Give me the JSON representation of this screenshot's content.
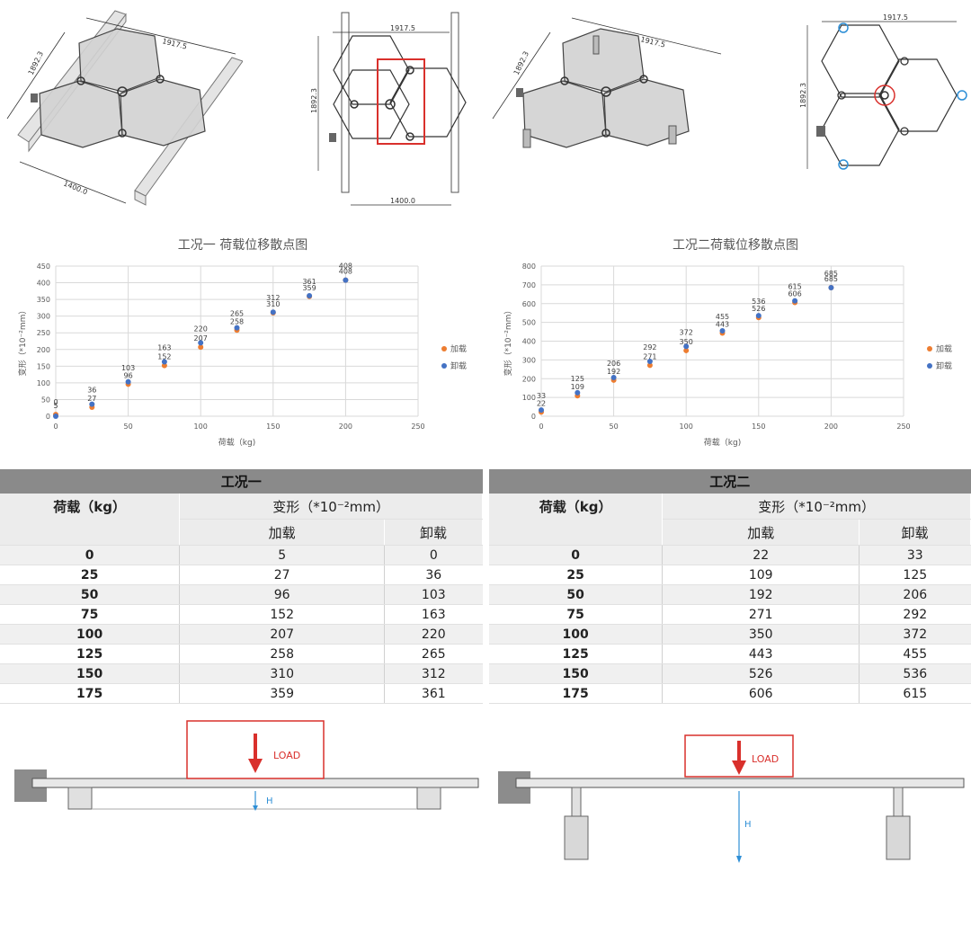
{
  "drawings": {
    "dim_width": "1917.5",
    "dim_height": "1892.3",
    "dim_span": "1400.0"
  },
  "colors": {
    "loading": "#ed7d31",
    "unloading": "#4472c4",
    "highlight_red": "#d9302c",
    "highlight_blue": "#2e8fd6",
    "table_title_bg": "#8a8a8a"
  },
  "chart_data": [
    {
      "type": "scatter",
      "title": "工况一 荷载位移散点图",
      "xlabel": "荷载（kg)",
      "ylabel": "变形（*10⁻²mm）",
      "xlim": [
        0,
        250
      ],
      "ylim": [
        0,
        450
      ],
      "xticks": [
        0,
        50,
        100,
        150,
        200,
        250
      ],
      "yticks": [
        0,
        50,
        100,
        150,
        200,
        250,
        300,
        350,
        400,
        450
      ],
      "grid": true,
      "legend_position": "right",
      "x": [
        0,
        25,
        50,
        75,
        100,
        125,
        150,
        175,
        200
      ],
      "series": [
        {
          "name": "加载",
          "color": "#ed7d31",
          "values": [
            5,
            27,
            96,
            152,
            207,
            258,
            310,
            359,
            408
          ]
        },
        {
          "name": "卸载",
          "color": "#4472c4",
          "values": [
            0,
            36,
            103,
            163,
            220,
            265,
            312,
            361,
            408
          ]
        }
      ]
    },
    {
      "type": "scatter",
      "title": "工况二荷载位移散点图",
      "xlabel": "荷载（kg)",
      "ylabel": "变形（*10⁻²mm）",
      "xlim": [
        0,
        250
      ],
      "ylim": [
        0,
        800
      ],
      "xticks": [
        0,
        50,
        100,
        150,
        200,
        250
      ],
      "yticks": [
        0,
        100,
        200,
        300,
        400,
        500,
        600,
        700,
        800
      ],
      "grid": true,
      "legend_position": "right",
      "x": [
        0,
        25,
        50,
        75,
        100,
        125,
        150,
        175,
        200
      ],
      "series": [
        {
          "name": "加载",
          "color": "#ed7d31",
          "values": [
            22,
            109,
            192,
            271,
            350,
            443,
            526,
            606,
            685
          ]
        },
        {
          "name": "卸载",
          "color": "#4472c4",
          "values": [
            33,
            125,
            206,
            292,
            372,
            455,
            536,
            615,
            685
          ]
        }
      ]
    }
  ],
  "tables": [
    {
      "title": "工况一",
      "col_load": "荷载（kg）",
      "col_deform": "变形（*10⁻²mm）",
      "col_loading": "加载",
      "col_unloading": "卸载",
      "rows": [
        [
          "0",
          "5",
          "0"
        ],
        [
          "25",
          "27",
          "36"
        ],
        [
          "50",
          "96",
          "103"
        ],
        [
          "75",
          "152",
          "163"
        ],
        [
          "100",
          "207",
          "220"
        ],
        [
          "125",
          "258",
          "265"
        ],
        [
          "150",
          "310",
          "312"
        ],
        [
          "175",
          "359",
          "361"
        ]
      ]
    },
    {
      "title": "工况二",
      "col_load": "荷载（kg）",
      "col_deform": "变形（*10⁻²mm）",
      "col_loading": "加载",
      "col_unloading": "卸载",
      "rows": [
        [
          "0",
          "22",
          "33"
        ],
        [
          "25",
          "109",
          "125"
        ],
        [
          "50",
          "192",
          "206"
        ],
        [
          "75",
          "271",
          "292"
        ],
        [
          "100",
          "350",
          "372"
        ],
        [
          "125",
          "443",
          "455"
        ],
        [
          "150",
          "526",
          "536"
        ],
        [
          "175",
          "606",
          "615"
        ]
      ]
    }
  ],
  "diagrams": {
    "load_label": "LOAD",
    "h_label": "H"
  }
}
